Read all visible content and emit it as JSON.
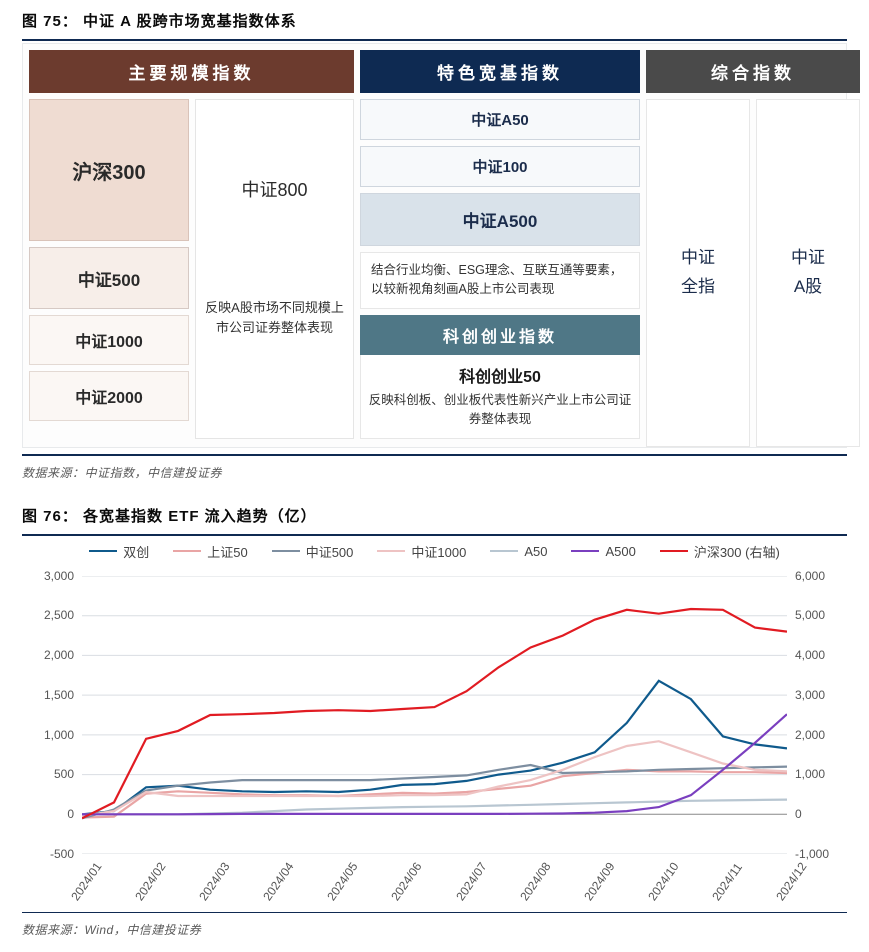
{
  "fig75": {
    "title": "图 75：  中证 A 股跨市场宽基指数体系",
    "source": "数据来源：中证指数，中信建投证券",
    "headers": {
      "scale": {
        "label": "主要规模指数",
        "bg": "#6c3b2e"
      },
      "special": {
        "label": "特色宽基指数",
        "bg": "#0e2a52"
      },
      "composite": {
        "label": "综合指数",
        "bg": "#4a4a4a"
      }
    },
    "scale_left": [
      {
        "label": "沪深300",
        "cls": "box-big"
      },
      {
        "label": "中证500",
        "cls": "box-mid"
      },
      {
        "label": "中证1000",
        "cls": "box-sml"
      },
      {
        "label": "中证2000",
        "cls": "box-sml"
      }
    ],
    "scale_right_big": "中证800",
    "scale_right_note": "反映A股市场不同规模上市公司证券整体表现",
    "special_items": [
      {
        "label": "中证A50",
        "cls": "navy-box"
      },
      {
        "label": "中证100",
        "cls": "navy-box"
      },
      {
        "label": "中证A500",
        "cls": "navy-box strong"
      }
    ],
    "special_desc": "结合行业均衡、ESG理念、互联互通等要素，以较新视角刻画A股上市公司表现",
    "kc_header": "科创创业指数",
    "kc_title": "科创创业50",
    "kc_desc": "反映科创板、创业板代表性新兴产业上市公司证券整体表现",
    "composite_a": "中证\n全指",
    "composite_b": "中证\nA股"
  },
  "fig76": {
    "title": "图 76：  各宽基指数 ETF 流入趋势（亿）",
    "source": "数据来源：Wind，中信建投证券",
    "x_labels": [
      "2024/01",
      "2024/02",
      "2024/03",
      "2024/04",
      "2024/05",
      "2024/06",
      "2024/07",
      "2024/08",
      "2024/09",
      "2024/10",
      "2024/11",
      "2024/12"
    ],
    "left_axis": {
      "min": -500,
      "max": 3000,
      "step": 500
    },
    "right_axis": {
      "min": -1000,
      "max": 6000,
      "step": 1000
    },
    "legend": [
      {
        "name": "双创",
        "color": "#0f5a8c",
        "width": 2.2
      },
      {
        "name": "上证50",
        "color": "#e9a5a5",
        "width": 2.2
      },
      {
        "name": "中证500",
        "color": "#7d8ea0",
        "width": 2.2
      },
      {
        "name": "中证1000",
        "color": "#eec3c3",
        "width": 2.2
      },
      {
        "name": "A50",
        "color": "#b8c6d1",
        "width": 2.2
      },
      {
        "name": "A500",
        "color": "#7a3fbf",
        "width": 2.4
      },
      {
        "name": "沪深300 (右轴)",
        "color": "#e11b22",
        "width": 2.6
      }
    ],
    "series_left": {
      "双创": [
        0,
        40,
        340,
        360,
        310,
        290,
        280,
        290,
        280,
        310,
        370,
        380,
        420,
        500,
        550,
        650,
        780,
        1150,
        1680,
        1450,
        980,
        880,
        830
      ],
      "上证50": [
        -40,
        -30,
        260,
        290,
        270,
        250,
        240,
        240,
        230,
        250,
        270,
        260,
        280,
        320,
        360,
        480,
        520,
        560,
        540,
        540,
        530,
        530,
        520
      ],
      "中证500": [
        -50,
        60,
        300,
        360,
        400,
        430,
        430,
        430,
        430,
        430,
        450,
        470,
        490,
        560,
        620,
        520,
        530,
        540,
        560,
        570,
        580,
        590,
        600
      ],
      "中证1000": [
        -20,
        40,
        280,
        230,
        230,
        230,
        230,
        230,
        230,
        230,
        240,
        240,
        250,
        350,
        430,
        560,
        720,
        860,
        920,
        780,
        640,
        560,
        540
      ],
      "A50": [
        0,
        0,
        0,
        0,
        10,
        20,
        40,
        60,
        70,
        80,
        90,
        95,
        100,
        110,
        120,
        130,
        140,
        150,
        160,
        170,
        175,
        180,
        185
      ],
      "A500": [
        0,
        0,
        0,
        0,
        2,
        5,
        5,
        5,
        5,
        5,
        5,
        5,
        5,
        5,
        8,
        10,
        20,
        40,
        90,
        240,
        560,
        900,
        1260
      ]
    },
    "series_right": {
      "沪深300 (右轴)": [
        -100,
        300,
        1900,
        2100,
        2500,
        2520,
        2550,
        2600,
        2620,
        2600,
        2650,
        2700,
        3100,
        3700,
        4200,
        4500,
        4900,
        5150,
        5050,
        5170,
        5150,
        4700,
        4600
      ]
    }
  }
}
